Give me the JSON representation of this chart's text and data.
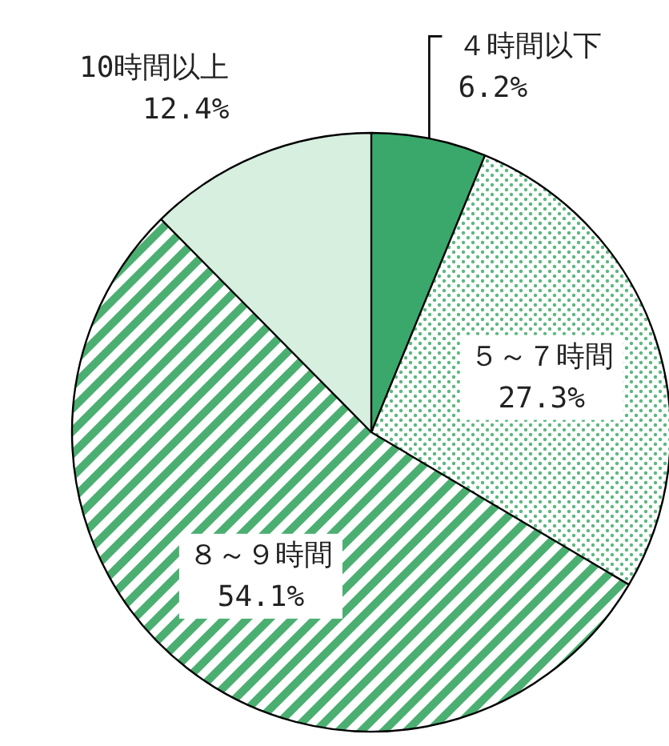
{
  "chart_data": {
    "type": "pie",
    "categories": [
      "４時間以下",
      "５～７時間",
      "８～９時間",
      "10時間以上"
    ],
    "values": [
      6.2,
      27.3,
      54.1,
      12.4
    ],
    "colors": [
      "#3aa86b",
      "#5cb880",
      "#4caf72",
      "#d6efdf"
    ],
    "value_labels": [
      "6.2%",
      "27.3%",
      "54.1%",
      "12.4%"
    ]
  }
}
